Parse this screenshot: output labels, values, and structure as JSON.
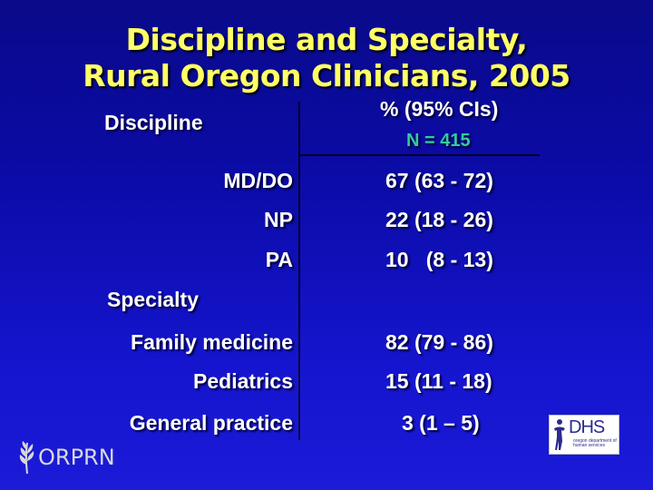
{
  "title": {
    "line1": "Discipline and Specialty,",
    "line2": "Rural Oregon Clinicians, 2005"
  },
  "header": {
    "left": "Discipline",
    "right": "% (95% CIs)",
    "n": "N = 415"
  },
  "discipline_rows": [
    {
      "label": "MD/DO",
      "value": "67 (63 - 72)"
    },
    {
      "label": "NP",
      "value": "22 (18 - 26)"
    },
    {
      "label": "PA",
      "value": "10   (8 - 13)"
    }
  ],
  "specialty_heading": "Specialty",
  "specialty_rows": [
    {
      "label": "Family medicine",
      "value": "82 (79 - 86)"
    },
    {
      "label": "Pediatrics",
      "value": "15 (11 - 18)"
    },
    {
      "label": "General practice",
      "value": "3 (1 – 5)"
    }
  ],
  "logos": {
    "left": "ORPRN",
    "right": "DHS",
    "right_sub": "oregon department of human services"
  },
  "colors": {
    "title": "#ffff66",
    "n_count": "#33cc99",
    "background": "#1010b8"
  }
}
